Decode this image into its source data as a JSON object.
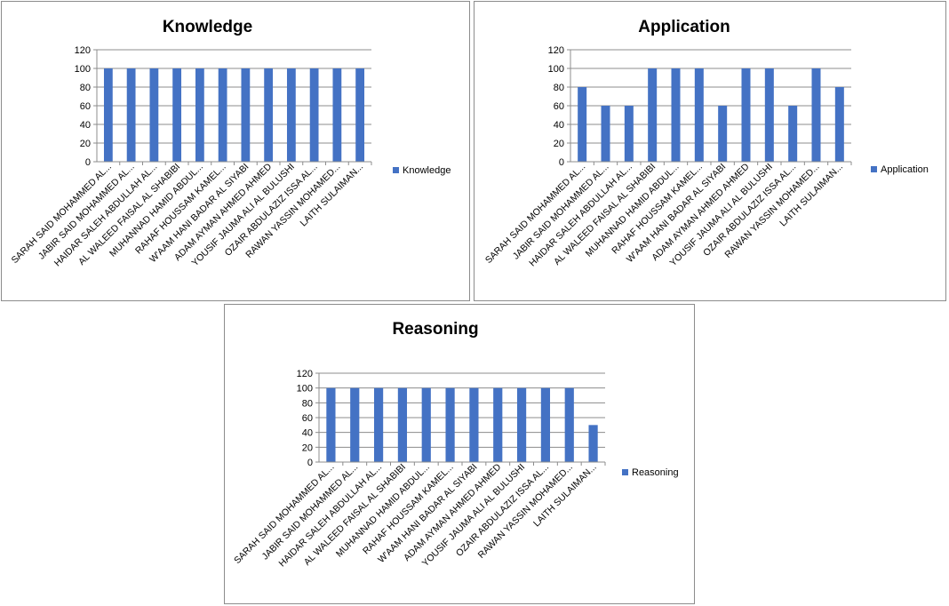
{
  "chart_data": [
    {
      "type": "bar",
      "title": "Knowledge",
      "categories": [
        "SARAH SAID MOHAMMED AL...",
        "JABIR SAID MOHAMMED AL...",
        "HAIDAR SALEH ABDULLAH AL...",
        "AL WALEED FAISAL AL SHABIBI",
        "MUHANNAD HAMID ABDUL...",
        "RAHAF HOUSSAM KAMEL...",
        "W'AAM HANI BADAR AL SIYABI",
        "ADAM AYMAN AHMED AHMED",
        "YOUSIF JAUMA ALI AL BULUSHI",
        "OZAIR ABDULAZIZ ISSA AL...",
        "RAWAN YASSIN MOHAMED...",
        "LAITH SULAIMAN..."
      ],
      "series": [
        {
          "name": "Knowledge",
          "values": [
            100,
            100,
            100,
            100,
            100,
            100,
            100,
            100,
            100,
            100,
            100,
            100
          ]
        }
      ],
      "ylim": [
        0,
        120
      ],
      "yticks": [
        0,
        20,
        40,
        60,
        80,
        100,
        120
      ],
      "grid": true,
      "legend": "right",
      "color": "#4472c4"
    },
    {
      "type": "bar",
      "title": "Application",
      "categories": [
        "SARAH SAID MOHAMMED AL...",
        "JABIR SAID MOHAMMED AL...",
        "HAIDAR SALEH ABDULLAH AL...",
        "AL WALEED FAISAL AL SHABIBI",
        "MUHANNAD HAMID ABDUL...",
        "RAHAF HOUSSAM KAMEL...",
        "W'AAM HANI BADAR AL SIYABI",
        "ADAM AYMAN AHMED AHMED",
        "YOUSIF JAUMA ALI AL BULUSHI",
        "OZAIR ABDULAZIZ ISSA AL...",
        "RAWAN YASSIN MOHAMED...",
        "LAITH SULAIMAN..."
      ],
      "series": [
        {
          "name": "Application",
          "values": [
            80,
            60,
            60,
            100,
            100,
            100,
            60,
            100,
            100,
            60,
            100,
            80
          ]
        }
      ],
      "ylim": [
        0,
        120
      ],
      "yticks": [
        0,
        20,
        40,
        60,
        80,
        100,
        120
      ],
      "grid": true,
      "legend": "right",
      "color": "#4472c4"
    },
    {
      "type": "bar",
      "title": "Reasoning",
      "categories": [
        "SARAH SAID MOHAMMED AL...",
        "JABIR SAID MOHAMMED AL...",
        "HAIDAR SALEH ABDULLAH AL...",
        "AL WALEED FAISAL AL SHABIBI",
        "MUHANNAD HAMID ABDUL...",
        "RAHAF HOUSSAM KAMEL...",
        "W'AAM HANI BADAR AL SIYABI",
        "ADAM AYMAN AHMED AHMED",
        "YOUSIF JAUMA ALI AL BULUSHI",
        "OZAIR ABDULAZIZ ISSA AL...",
        "RAWAN YASSIN MOHAMED...",
        "LAITH SULAIMAN..."
      ],
      "series": [
        {
          "name": "Reasoning",
          "values": [
            100,
            100,
            100,
            100,
            100,
            100,
            100,
            100,
            100,
            100,
            100,
            50
          ]
        }
      ],
      "ylim": [
        0,
        120
      ],
      "yticks": [
        0,
        20,
        40,
        60,
        80,
        100,
        120
      ],
      "grid": true,
      "legend": "right",
      "color": "#4472c4"
    }
  ]
}
